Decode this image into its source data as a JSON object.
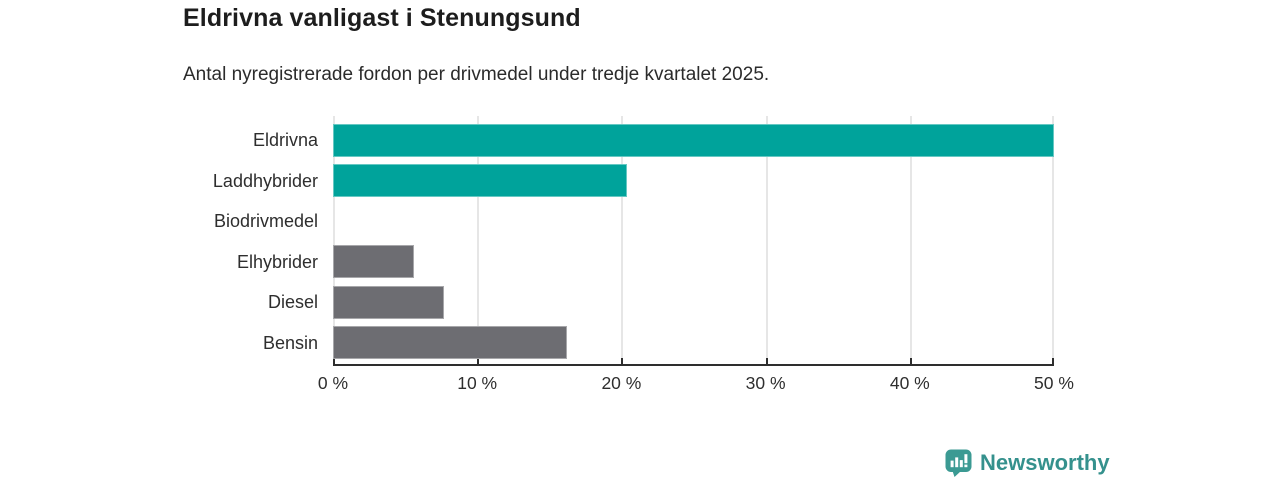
{
  "header": {
    "title": "Eldrivna vanligast i Stenungsund",
    "subtitle": "Antal nyregistrerade fordon per drivmedel under tredje kvartalet 2025."
  },
  "chart_data": {
    "type": "bar",
    "orientation": "horizontal",
    "title": "Eldrivna vanligast i Stenungsund",
    "subtitle": "Antal nyregistrerade fordon per drivmedel under tredje kvartalet 2025.",
    "categories": [
      "Eldrivna",
      "Laddhybrider",
      "Biodrivmedel",
      "Elhybrider",
      "Diesel",
      "Bensin"
    ],
    "values": [
      50.0,
      20.4,
      0,
      5.6,
      7.7,
      16.2
    ],
    "unit": "%",
    "bar_colors": [
      "#00a39b",
      "#00a39b",
      "#6d6d72",
      "#6d6d72",
      "#6d6d72",
      "#6d6d72"
    ],
    "xlabel": "",
    "ylabel": "",
    "xlim": [
      0,
      50
    ],
    "x_ticks": [
      0,
      10,
      20,
      30,
      40,
      50
    ],
    "x_tick_labels": [
      "0 %",
      "10 %",
      "20 %",
      "30 %",
      "40 %",
      "50 %"
    ],
    "grid": "vertical",
    "legend_position": "none"
  },
  "branding": {
    "logo_text": "Newsworthy",
    "logo_icon": "bar-chart-speech-bubble-icon",
    "logo_color": "#35918d",
    "icon_color": "#3b9a93"
  },
  "colors": {
    "highlight_teal": "#00a39b",
    "neutral_gray": "#6d6d72",
    "axis": "#2e2e2e",
    "grid": "#e6e6e6",
    "background": "#ffffff"
  }
}
